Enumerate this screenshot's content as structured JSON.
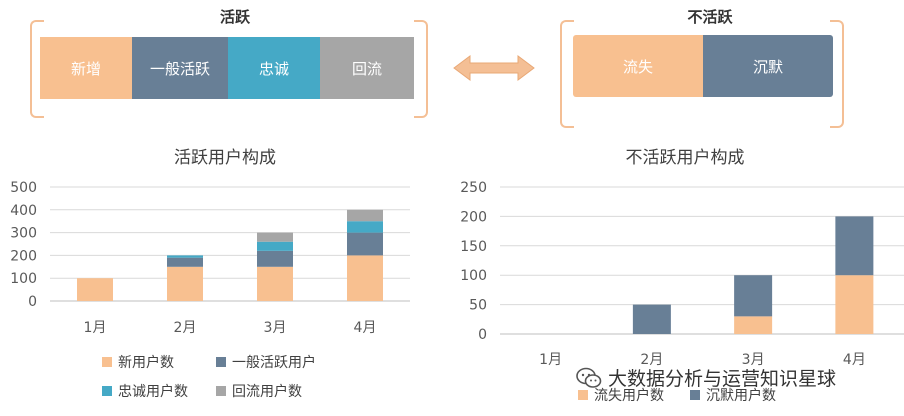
{
  "active_group": {
    "title": "活跃",
    "segments": [
      {
        "label": "新增",
        "color": "#f8c090"
      },
      {
        "label": "一般活跃",
        "color": "#687f96"
      },
      {
        "label": "忠诚",
        "color": "#45a9c6"
      },
      {
        "label": "回流",
        "color": "#a6a6a6"
      }
    ]
  },
  "inactive_group": {
    "title": "不活跃",
    "segments": [
      {
        "label": "流失",
        "color": "#f8c090"
      },
      {
        "label": "沉默",
        "color": "#687f96"
      }
    ]
  },
  "arrow_color": "#f4bf95",
  "chart_data": [
    {
      "type": "bar",
      "stacked": true,
      "title": "活跃用户构成",
      "categories": [
        "1月",
        "2月",
        "3月",
        "4月"
      ],
      "ylim": [
        0,
        500
      ],
      "yticks": [
        "0",
        "100",
        "200",
        "300",
        "400",
        "500"
      ],
      "grid": true,
      "legend_position": "bottom",
      "series": [
        {
          "name": "新用户数",
          "color": "#f8c090",
          "values": [
            100,
            150,
            150,
            200
          ]
        },
        {
          "name": "一般活跃用户",
          "color": "#687f96",
          "values": [
            0,
            40,
            70,
            100
          ]
        },
        {
          "name": "忠诚用户数",
          "color": "#45a9c6",
          "values": [
            0,
            10,
            40,
            50
          ]
        },
        {
          "name": "回流用户数",
          "color": "#a6a6a6",
          "values": [
            0,
            0,
            40,
            50
          ]
        }
      ]
    },
    {
      "type": "bar",
      "stacked": true,
      "title": "不活跃用户构成",
      "categories": [
        "1月",
        "2月",
        "3月",
        "4月"
      ],
      "ylim": [
        0,
        250
      ],
      "yticks": [
        "0",
        "50",
        "100",
        "150",
        "200",
        "250"
      ],
      "grid": true,
      "legend_position": "bottom",
      "series": [
        {
          "name": "流失用户数",
          "color": "#f8c090",
          "values": [
            0,
            0,
            30,
            100
          ]
        },
        {
          "name": "沉默用户数",
          "color": "#687f96",
          "values": [
            0,
            50,
            70,
            100
          ]
        }
      ]
    }
  ],
  "watermark": {
    "icon": "wechat-icon",
    "text": "大数据分析与运营知识星球"
  }
}
